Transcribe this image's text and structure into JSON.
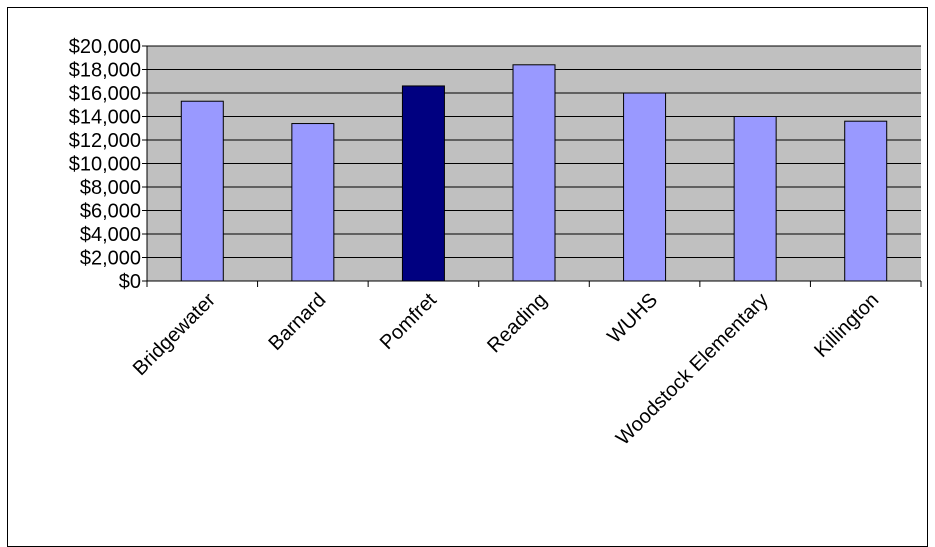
{
  "chart_data": {
    "type": "bar",
    "categories": [
      "Bridgewater",
      "Barnard",
      "Pomfret",
      "Reading",
      "WUHS",
      "Woodstock Elementary",
      "Killington"
    ],
    "values": [
      15300,
      13400,
      16600,
      18400,
      16000,
      14000,
      13600
    ],
    "highlight_index": 2,
    "ylim": [
      0,
      20000
    ],
    "yticks": [
      0,
      2000,
      4000,
      6000,
      8000,
      10000,
      12000,
      14000,
      16000,
      18000,
      20000
    ],
    "ytick_labels": [
      "$0",
      "$2,000",
      "$4,000",
      "$6,000",
      "$8,000",
      "$10,000",
      "$12,000",
      "$14,000",
      "$16,000",
      "$18,000",
      "$20,000"
    ],
    "title": "",
    "xlabel": "",
    "ylabel": "",
    "grid": true,
    "colors": {
      "bar": "#9999ff",
      "bar_highlight": "#000080",
      "plot_background": "#c0c0c0",
      "gridline": "#000000"
    }
  }
}
